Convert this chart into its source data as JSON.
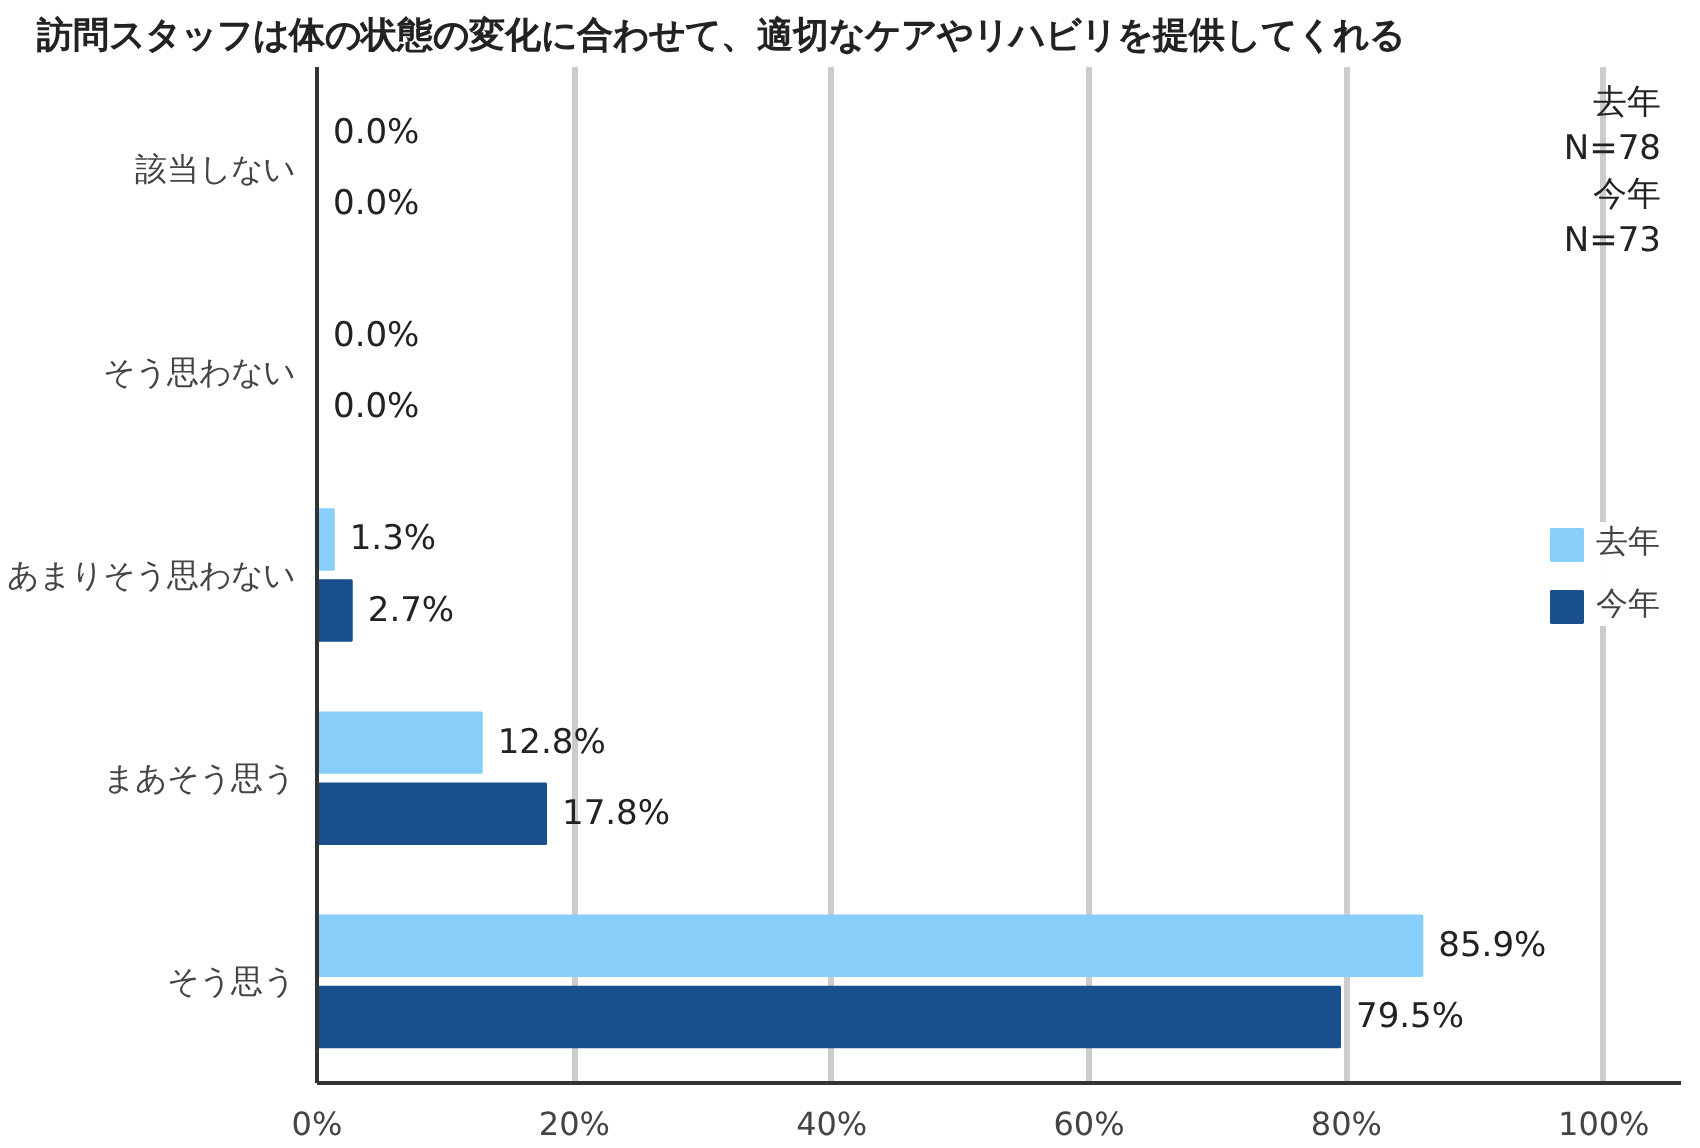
{
  "chart_data": {
    "type": "bar",
    "orientation": "horizontal",
    "title": "訪問スタッフは体の状態の変化に合わせて、適切なケアやリハビリを提供してくれる",
    "categories": [
      "該当しない",
      "そう思わない",
      "あまりそう思わない",
      "まあそう思う",
      "そう思う"
    ],
    "series": [
      {
        "name": "去年",
        "color": "#87cefa",
        "values": [
          0.0,
          0.0,
          1.3,
          12.8,
          85.9
        ],
        "value_labels": [
          "0.0%",
          "0.0%",
          "1.3%",
          "12.8%",
          "85.9%"
        ]
      },
      {
        "name": "今年",
        "color": "#1a4f8d",
        "values": [
          0.0,
          0.0,
          2.7,
          17.8,
          79.5
        ],
        "value_labels": [
          "0.0%",
          "0.0%",
          "2.7%",
          "17.8%",
          "79.5%"
        ]
      }
    ],
    "xlim": [
      0,
      106
    ],
    "xticks": [
      {
        "value": 0,
        "label": "0%"
      },
      {
        "value": 20,
        "label": "20%"
      },
      {
        "value": 40,
        "label": "40%"
      },
      {
        "value": 60,
        "label": "60%"
      },
      {
        "value": 80,
        "label": "80%"
      },
      {
        "value": 100,
        "label": "100%"
      }
    ],
    "grid": "x",
    "legend": "right",
    "annotations": [
      "去年\nN=78\n今年\nN=73"
    ]
  }
}
